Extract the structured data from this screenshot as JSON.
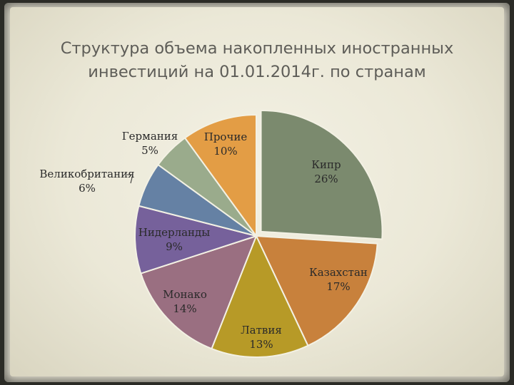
{
  "slide": {
    "title_line1": "Структура объема накопленных иностранных",
    "title_line2": "инвестиций на 01.01.2014г. по странам"
  },
  "chart_data": {
    "type": "pie",
    "title": "Структура объема накопленных иностранных инвестиций на 01.01.2014г. по странам",
    "legend": "none",
    "exploded_slice": "Кипр",
    "slices": [
      {
        "name": "Кипр",
        "value_label": "26%",
        "value": 26,
        "color": "#7b8a6e"
      },
      {
        "name": "Казахстан",
        "value_label": "17%",
        "value": 17,
        "color": "#c8813c"
      },
      {
        "name": "Латвия",
        "value_label": "13%",
        "value": 13,
        "color": "#b79a27"
      },
      {
        "name": "Монако",
        "value_label": "14%",
        "value": 14,
        "color": "#9a6f81"
      },
      {
        "name": "Нидерланды",
        "value_label": "9%",
        "value": 9,
        "color": "#76619b"
      },
      {
        "name": "Великобритания",
        "value_label": "6%",
        "value": 6,
        "color": "#6581a4"
      },
      {
        "name": "Германия",
        "value_label": "5%",
        "value": 5,
        "color": "#9aab8c"
      },
      {
        "name": "Прочие",
        "value_label": "10%",
        "value": 10,
        "color": "#e39d45"
      }
    ]
  }
}
